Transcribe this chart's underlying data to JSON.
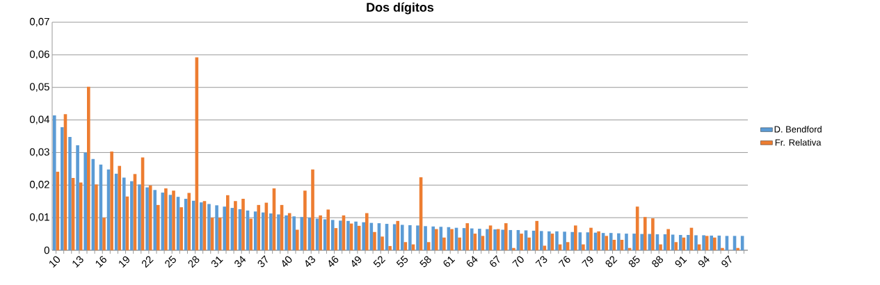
{
  "chart_data": {
    "type": "bar",
    "title": "Dos dígitos",
    "categories": [
      "10",
      null,
      null,
      "13",
      null,
      null,
      "16",
      null,
      null,
      "19",
      null,
      null,
      "22",
      null,
      null,
      "25",
      null,
      null,
      "28",
      null,
      null,
      "31",
      null,
      null,
      "34",
      null,
      null,
      "37",
      null,
      null,
      "40",
      null,
      null,
      "43",
      null,
      null,
      "46",
      null,
      null,
      "49",
      null,
      null,
      "52",
      null,
      null,
      "55",
      null,
      null,
      "58",
      null,
      null,
      "61",
      null,
      null,
      "64",
      null,
      null,
      "67",
      null,
      null,
      "70",
      null,
      null,
      "73",
      null,
      null,
      "76",
      null,
      null,
      "79",
      null,
      null,
      "82",
      null,
      null,
      "85",
      null,
      null,
      "88",
      null,
      null,
      "91",
      null,
      null,
      "94",
      null,
      null,
      "97",
      null,
      null
    ],
    "series": [
      {
        "name": "D. Bendford",
        "color": "#5b9bd5",
        "values": [
          0.0414,
          0.0378,
          0.0348,
          0.0322,
          0.03,
          0.028,
          0.0263,
          0.0248,
          0.0235,
          0.0223,
          0.0212,
          0.0202,
          0.0193,
          0.0185,
          0.0177,
          0.017,
          0.0164,
          0.0158,
          0.0152,
          0.0147,
          0.0142,
          0.0138,
          0.0134,
          0.013,
          0.0126,
          0.0122,
          0.0119,
          0.0116,
          0.0113,
          0.011,
          0.0107,
          0.0104,
          0.0102,
          0.01,
          0.0097,
          0.0095,
          0.0093,
          0.0091,
          0.009,
          0.0088,
          0.0086,
          0.0084,
          0.0083,
          0.0081,
          0.008,
          0.0078,
          0.0077,
          0.0076,
          0.0074,
          0.0073,
          0.0072,
          0.0071,
          0.0069,
          0.0068,
          0.0067,
          0.0066,
          0.0065,
          0.0064,
          0.0063,
          0.0062,
          0.0062,
          0.0061,
          0.006,
          0.0059,
          0.0058,
          0.0058,
          0.0057,
          0.0056,
          0.0055,
          0.0055,
          0.0054,
          0.0053,
          0.0053,
          0.0052,
          0.0051,
          0.0051,
          0.005,
          0.005,
          0.0049,
          0.0049,
          0.0048,
          0.0047,
          0.0047,
          0.0046,
          0.0046,
          0.0045,
          0.0045,
          0.0044,
          0.0044,
          0.0044
        ]
      },
      {
        "name": "Fr. Relativa",
        "color": "#ed7d31",
        "values": [
          0.0241,
          0.0418,
          0.0222,
          0.0208,
          0.0502,
          0.0202,
          0.01,
          0.0303,
          0.0259,
          0.0165,
          0.0234,
          0.0285,
          0.0199,
          0.0139,
          0.019,
          0.0183,
          0.0132,
          0.0176,
          0.0592,
          0.0151,
          0.01,
          0.01,
          0.0169,
          0.0151,
          0.0158,
          0.0097,
          0.0139,
          0.0146,
          0.019,
          0.0139,
          0.0114,
          0.0063,
          0.0183,
          0.0248,
          0.0107,
          0.0125,
          0.0068,
          0.0107,
          0.0082,
          0.0075,
          0.0114,
          0.0056,
          0.0042,
          0.0013,
          0.009,
          0.0025,
          0.0018,
          0.0224,
          0.0025,
          0.0065,
          0.0039,
          0.0065,
          0.0039,
          0.0083,
          0.0051,
          0.0044,
          0.0076,
          0.0065,
          0.0083,
          0.0007,
          0.0051,
          0.0039,
          0.009,
          0.0014,
          0.0051,
          0.0018,
          0.0025,
          0.0076,
          0.0018,
          0.0069,
          0.0058,
          0.0044,
          0.0032,
          0.0032,
          0.0007,
          0.0134,
          0.0102,
          0.0098,
          0.0018,
          0.0065,
          0.0025,
          0.0039,
          0.0069,
          0.0018,
          0.0044,
          0.0039,
          0.0007,
          0,
          0.0007,
          0
        ]
      }
    ],
    "ylim": [
      0,
      0.07
    ],
    "yticks": [
      0,
      {
        "value": 0.01,
        "label": "0,01"
      },
      {
        "value": 0.02,
        "label": "0,02"
      },
      {
        "value": 0.03,
        "label": "0,03"
      },
      {
        "value": 0.04,
        "label": "0,04"
      },
      {
        "value": 0.05,
        "label": "0,05"
      },
      {
        "value": 0.06,
        "label": "0,06"
      },
      {
        "value": 0.07,
        "label": "0,07"
      }
    ],
    "grid": "y",
    "legend": "right"
  }
}
